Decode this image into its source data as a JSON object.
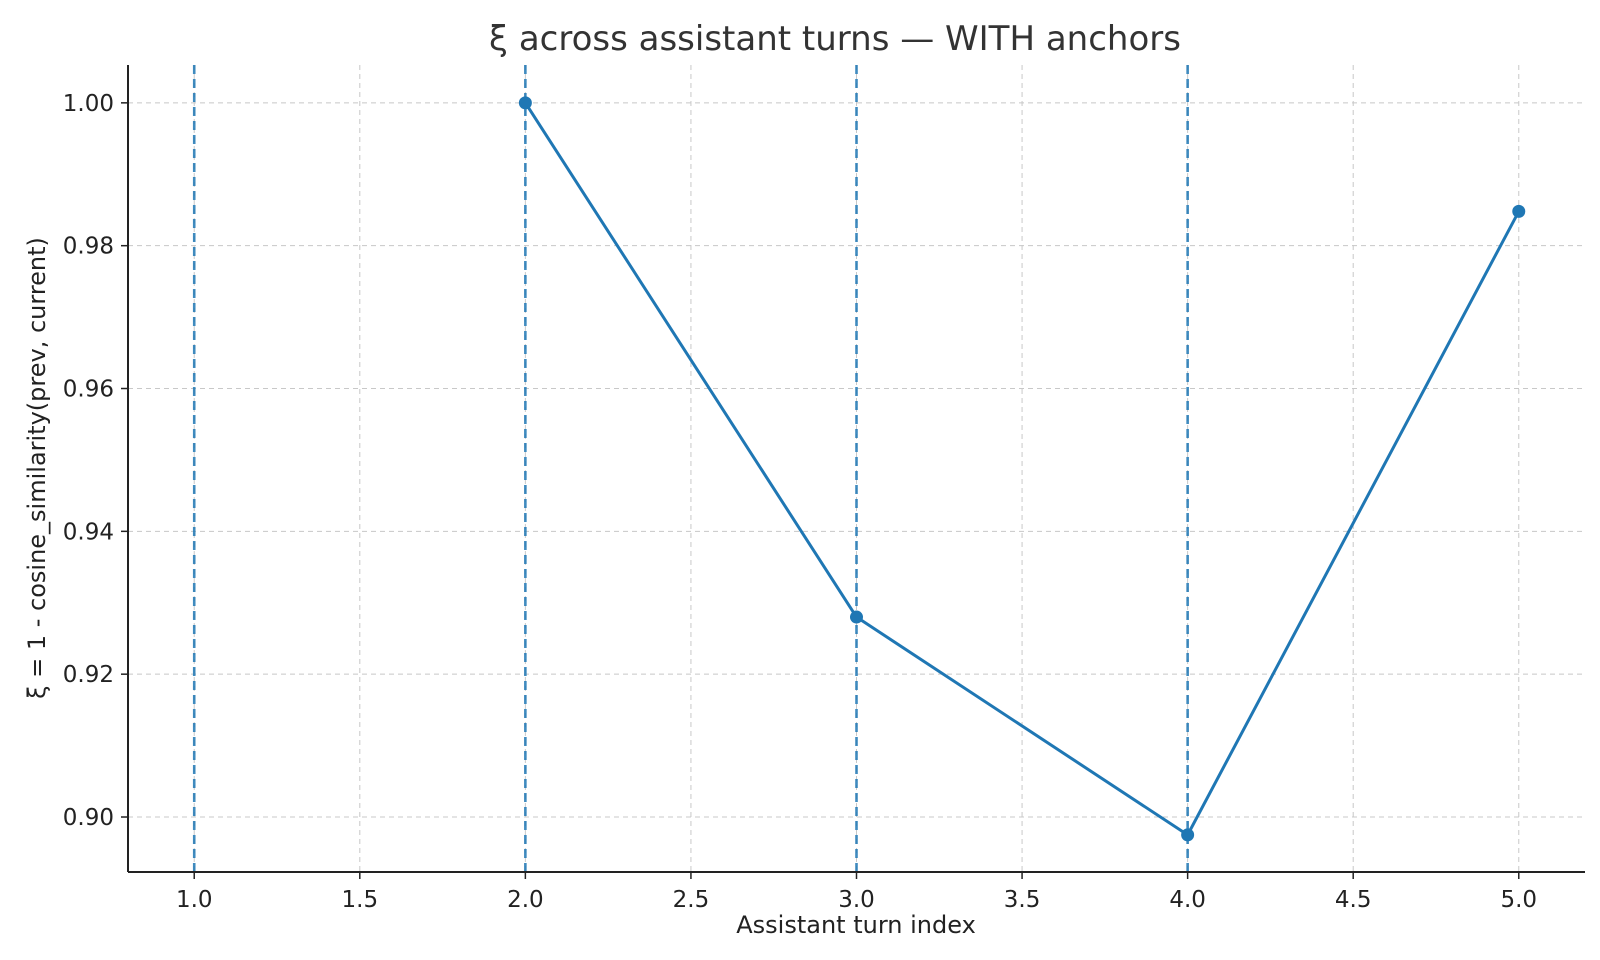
{
  "chart_data": {
    "type": "line",
    "title": "ξ across assistant turns — WITH anchors",
    "xlabel": "Assistant turn index",
    "ylabel": "ξ = 1 - cosine_similarity(prev, current)",
    "xlim": [
      0.8,
      5.2
    ],
    "ylim": [
      0.8923,
      1.0053
    ],
    "x_ticks": [
      1.0,
      1.5,
      2.0,
      2.5,
      3.0,
      3.5,
      4.0,
      4.5,
      5.0
    ],
    "x_tick_labels": [
      "1.0",
      "1.5",
      "2.0",
      "2.5",
      "3.0",
      "3.5",
      "4.0",
      "4.5",
      "5.0"
    ],
    "y_ticks": [
      0.9,
      0.92,
      0.94,
      0.96,
      0.98,
      1.0
    ],
    "y_tick_labels": [
      "0.90",
      "0.92",
      "0.94",
      "0.96",
      "0.98",
      "1.00"
    ],
    "grid": true,
    "series": [
      {
        "x": [
          2,
          3,
          4,
          5
        ],
        "values": [
          1.0,
          0.928,
          0.8975,
          0.9848
        ],
        "color": "#1f77b4",
        "marker": "circle"
      }
    ],
    "anchors": {
      "x": [
        1,
        2,
        3,
        4
      ],
      "color": "#1f77b4",
      "style": "dashed"
    }
  }
}
